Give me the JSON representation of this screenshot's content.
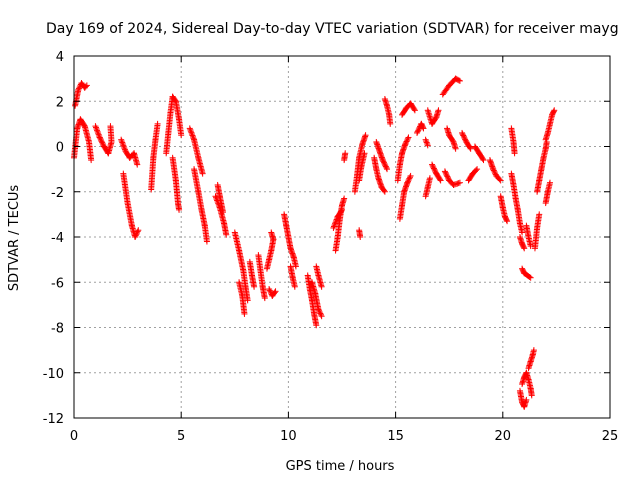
{
  "chart_data": {
    "type": "scatter",
    "title": "Day 169 of 2024, Sidereal Day-to-day VTEC variation (SDTVAR) for receiver mayg",
    "xlabel": "GPS time / hours",
    "ylabel": "SDTVAR / TECUs",
    "xlim": [
      0,
      25
    ],
    "ylim": [
      -12,
      4
    ],
    "xticks": [
      0,
      5,
      10,
      15,
      20,
      25
    ],
    "yticks": [
      -12,
      -10,
      -8,
      -6,
      -4,
      -2,
      0,
      2,
      4
    ],
    "xtick_labels": [
      "0",
      "5",
      "10",
      "15",
      "20",
      "25"
    ],
    "ytick_labels": [
      "-12",
      "-10",
      "-8",
      "-6",
      "-4",
      "-2",
      "0",
      "2",
      "4"
    ],
    "grid": true,
    "marker": "+",
    "color": "#ff0000",
    "series": [
      {
        "name": "SDTVAR",
        "segments": [
          [
            [
              0.0,
              -0.5
            ],
            [
              0.15,
              0.8
            ],
            [
              0.3,
              1.2
            ],
            [
              0.5,
              0.9
            ],
            [
              0.7,
              0.2
            ],
            [
              0.8,
              -0.6
            ]
          ],
          [
            [
              0.05,
              1.8
            ],
            [
              0.2,
              2.5
            ],
            [
              0.35,
              2.8
            ],
            [
              0.5,
              2.6
            ],
            [
              0.6,
              2.7
            ]
          ],
          [
            [
              1.0,
              0.9
            ],
            [
              1.2,
              0.4
            ],
            [
              1.4,
              0.0
            ],
            [
              1.6,
              -0.3
            ],
            [
              1.75,
              0.2
            ],
            [
              1.7,
              0.9
            ]
          ],
          [
            [
              2.2,
              0.3
            ],
            [
              2.4,
              -0.2
            ],
            [
              2.6,
              -0.5
            ],
            [
              2.8,
              -0.3
            ],
            [
              2.95,
              -0.8
            ]
          ],
          [
            [
              2.3,
              -1.2
            ],
            [
              2.5,
              -2.5
            ],
            [
              2.7,
              -3.5
            ],
            [
              2.85,
              -4.0
            ],
            [
              3.0,
              -3.7
            ]
          ],
          [
            [
              3.6,
              -1.9
            ],
            [
              3.7,
              -0.5
            ],
            [
              3.8,
              0.3
            ],
            [
              3.9,
              1.0
            ]
          ],
          [
            [
              4.3,
              -0.3
            ],
            [
              4.4,
              0.6
            ],
            [
              4.5,
              1.5
            ],
            [
              4.6,
              2.2
            ],
            [
              4.75,
              2.0
            ],
            [
              4.9,
              1.2
            ],
            [
              5.0,
              0.5
            ]
          ],
          [
            [
              4.6,
              -0.5
            ],
            [
              4.75,
              -1.5
            ],
            [
              4.85,
              -2.5
            ],
            [
              4.9,
              -2.8
            ]
          ],
          [
            [
              5.4,
              0.8
            ],
            [
              5.6,
              0.3
            ],
            [
              5.8,
              -0.5
            ],
            [
              6.0,
              -1.2
            ]
          ],
          [
            [
              5.6,
              -1.0
            ],
            [
              5.8,
              -2.0
            ],
            [
              5.95,
              -2.8
            ],
            [
              6.1,
              -3.5
            ],
            [
              6.2,
              -4.2
            ]
          ],
          [
            [
              6.6,
              -2.2
            ],
            [
              6.8,
              -2.7
            ],
            [
              7.0,
              -3.4
            ],
            [
              7.1,
              -3.9
            ]
          ],
          [
            [
              6.7,
              -1.7
            ],
            [
              6.8,
              -2.2
            ],
            [
              6.95,
              -2.9
            ]
          ],
          [
            [
              7.5,
              -3.8
            ],
            [
              7.7,
              -4.6
            ],
            [
              7.9,
              -5.5
            ],
            [
              8.0,
              -6.2
            ],
            [
              8.1,
              -6.8
            ]
          ],
          [
            [
              7.7,
              -6.0
            ],
            [
              7.85,
              -6.6
            ],
            [
              7.95,
              -7.4
            ]
          ],
          [
            [
              8.2,
              -5.1
            ],
            [
              8.3,
              -5.7
            ],
            [
              8.4,
              -6.2
            ]
          ],
          [
            [
              8.6,
              -4.8
            ],
            [
              8.7,
              -5.5
            ],
            [
              8.8,
              -6.2
            ],
            [
              8.9,
              -6.7
            ]
          ],
          [
            [
              9.0,
              -5.4
            ],
            [
              9.1,
              -5.0
            ],
            [
              9.2,
              -4.6
            ],
            [
              9.3,
              -4.1
            ],
            [
              9.2,
              -3.8
            ]
          ],
          [
            [
              9.1,
              -6.3
            ],
            [
              9.25,
              -6.6
            ],
            [
              9.4,
              -6.4
            ]
          ],
          [
            [
              9.8,
              -3.0
            ],
            [
              9.9,
              -3.5
            ],
            [
              10.0,
              -4.0
            ],
            [
              10.1,
              -4.5
            ],
            [
              10.25,
              -4.9
            ],
            [
              10.35,
              -5.3
            ]
          ],
          [
            [
              10.1,
              -5.3
            ],
            [
              10.2,
              -5.8
            ],
            [
              10.3,
              -6.2
            ]
          ],
          [
            [
              10.9,
              -5.7
            ],
            [
              11.0,
              -6.3
            ],
            [
              11.1,
              -6.8
            ],
            [
              11.2,
              -7.4
            ],
            [
              11.3,
              -7.9
            ]
          ],
          [
            [
              11.1,
              -6.0
            ],
            [
              11.25,
              -6.5
            ],
            [
              11.4,
              -7.2
            ],
            [
              11.55,
              -7.5
            ]
          ],
          [
            [
              11.3,
              -5.3
            ],
            [
              11.4,
              -5.7
            ],
            [
              11.55,
              -6.2
            ]
          ],
          [
            [
              12.2,
              -4.6
            ],
            [
              12.3,
              -4.0
            ],
            [
              12.4,
              -3.2
            ],
            [
              12.5,
              -2.6
            ],
            [
              12.6,
              -2.3
            ]
          ],
          [
            [
              12.1,
              -3.6
            ],
            [
              12.3,
              -3.1
            ],
            [
              12.5,
              -2.8
            ]
          ],
          [
            [
              12.6,
              -0.6
            ],
            [
              12.65,
              -0.3
            ]
          ],
          [
            [
              13.3,
              -3.7
            ],
            [
              13.35,
              -4.0
            ]
          ],
          [
            [
              13.1,
              -2.0
            ],
            [
              13.2,
              -1.3
            ],
            [
              13.3,
              -0.5
            ],
            [
              13.45,
              0.1
            ],
            [
              13.6,
              0.5
            ]
          ],
          [
            [
              13.3,
              -1.5
            ],
            [
              13.4,
              -0.9
            ],
            [
              13.55,
              -0.3
            ]
          ],
          [
            [
              14.0,
              -0.5
            ],
            [
              14.1,
              -1.0
            ],
            [
              14.2,
              -1.4
            ],
            [
              14.35,
              -1.8
            ],
            [
              14.5,
              -2.0
            ]
          ],
          [
            [
              14.1,
              0.2
            ],
            [
              14.25,
              -0.2
            ],
            [
              14.4,
              -0.6
            ],
            [
              14.6,
              -1.0
            ]
          ],
          [
            [
              14.5,
              2.1
            ],
            [
              14.6,
              1.8
            ],
            [
              14.7,
              1.4
            ],
            [
              14.75,
              1.0
            ]
          ],
          [
            [
              15.1,
              -1.5
            ],
            [
              15.2,
              -0.8
            ],
            [
              15.3,
              -0.3
            ],
            [
              15.45,
              0.1
            ],
            [
              15.6,
              0.4
            ]
          ],
          [
            [
              15.2,
              -3.2
            ],
            [
              15.3,
              -2.6
            ],
            [
              15.4,
              -2.0
            ],
            [
              15.55,
              -1.6
            ],
            [
              15.7,
              -1.3
            ]
          ],
          [
            [
              15.3,
              1.4
            ],
            [
              15.5,
              1.7
            ],
            [
              15.7,
              1.9
            ],
            [
              15.9,
              1.6
            ]
          ],
          [
            [
              16.0,
              0.6
            ],
            [
              16.2,
              1.0
            ],
            [
              16.3,
              0.8
            ]
          ],
          [
            [
              16.4,
              -2.2
            ],
            [
              16.5,
              -1.8
            ],
            [
              16.6,
              -1.4
            ]
          ],
          [
            [
              16.4,
              0.3
            ],
            [
              16.5,
              0.05
            ]
          ],
          [
            [
              16.5,
              1.6
            ],
            [
              16.7,
              1.0
            ],
            [
              16.9,
              1.3
            ],
            [
              17.0,
              1.6
            ]
          ],
          [
            [
              16.7,
              -0.8
            ],
            [
              16.9,
              -1.2
            ],
            [
              17.1,
              -1.5
            ]
          ],
          [
            [
              17.2,
              2.3
            ],
            [
              17.5,
              2.7
            ],
            [
              17.8,
              3.0
            ],
            [
              18.0,
              2.9
            ]
          ],
          [
            [
              17.3,
              -1.1
            ],
            [
              17.5,
              -1.5
            ],
            [
              17.7,
              -1.7
            ],
            [
              18.0,
              -1.6
            ]
          ],
          [
            [
              17.4,
              0.8
            ],
            [
              17.5,
              0.5
            ],
            [
              17.7,
              0.2
            ],
            [
              17.8,
              -0.1
            ]
          ],
          [
            [
              18.1,
              0.6
            ],
            [
              18.3,
              0.2
            ],
            [
              18.5,
              -0.1
            ]
          ],
          [
            [
              18.4,
              -1.5
            ],
            [
              18.6,
              -1.2
            ],
            [
              18.8,
              -1.0
            ]
          ],
          [
            [
              18.7,
              0.0
            ],
            [
              18.9,
              -0.3
            ],
            [
              19.1,
              -0.6
            ]
          ],
          [
            [
              19.4,
              -0.6
            ],
            [
              19.55,
              -1.0
            ],
            [
              19.7,
              -1.3
            ],
            [
              19.9,
              -1.5
            ]
          ],
          [
            [
              19.9,
              -2.2
            ],
            [
              20.0,
              -2.7
            ],
            [
              20.1,
              -3.1
            ],
            [
              20.2,
              -3.3
            ]
          ],
          [
            [
              20.4,
              -1.2
            ],
            [
              20.5,
              -1.7
            ],
            [
              20.6,
              -2.3
            ],
            [
              20.7,
              -2.8
            ],
            [
              20.8,
              -3.4
            ],
            [
              20.9,
              -3.8
            ]
          ],
          [
            [
              20.4,
              0.8
            ],
            [
              20.5,
              0.2
            ],
            [
              20.55,
              -0.3
            ]
          ],
          [
            [
              20.8,
              -4.0
            ],
            [
              20.9,
              -4.3
            ],
            [
              21.0,
              -4.5
            ]
          ],
          [
            [
              21.1,
              -3.5
            ],
            [
              21.2,
              -4.0
            ],
            [
              21.3,
              -4.4
            ]
          ],
          [
            [
              20.9,
              -5.4
            ],
            [
              21.0,
              -5.6
            ],
            [
              21.15,
              -5.7
            ],
            [
              21.3,
              -5.8
            ]
          ],
          [
            [
              20.8,
              -10.8
            ],
            [
              20.9,
              -11.3
            ],
            [
              21.0,
              -11.5
            ],
            [
              21.1,
              -11.2
            ]
          ],
          [
            [
              20.9,
              -10.5
            ],
            [
              21.0,
              -10.2
            ],
            [
              21.1,
              -10.0
            ],
            [
              21.2,
              -10.3
            ],
            [
              21.3,
              -10.7
            ],
            [
              21.35,
              -11.0
            ]
          ],
          [
            [
              21.2,
              -9.8
            ],
            [
              21.3,
              -9.5
            ],
            [
              21.4,
              -9.2
            ],
            [
              21.45,
              -9.0
            ]
          ],
          [
            [
              21.5,
              -4.5
            ],
            [
              21.6,
              -3.6
            ],
            [
              21.7,
              -3.0
            ]
          ],
          [
            [
              21.6,
              -2.0
            ],
            [
              21.7,
              -1.5
            ],
            [
              21.8,
              -1.0
            ],
            [
              21.9,
              -0.5
            ],
            [
              22.0,
              -0.1
            ],
            [
              22.05,
              0.2
            ]
          ],
          [
            [
              22.0,
              -2.5
            ],
            [
              22.1,
              -2.0
            ],
            [
              22.2,
              -1.6
            ]
          ],
          [
            [
              22.0,
              0.3
            ],
            [
              22.1,
              0.6
            ],
            [
              22.2,
              1.0
            ],
            [
              22.3,
              1.4
            ],
            [
              22.4,
              1.6
            ]
          ]
        ]
      }
    ]
  }
}
